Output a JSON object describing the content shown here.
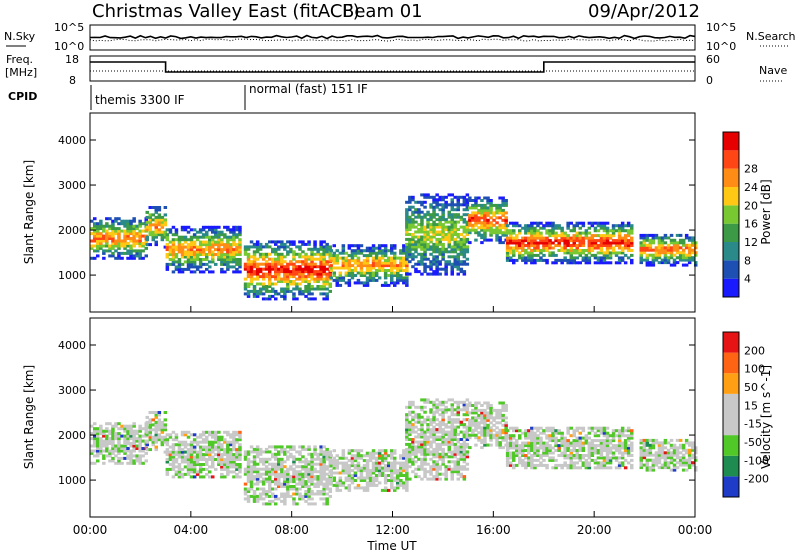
{
  "header": {
    "title": "Christmas Valley East (fitACF)",
    "beam": "Beam 01",
    "date": "09/Apr/2012"
  },
  "strips": {
    "noise_label": "N.Sky",
    "noise_left_ticks": [
      "10^5",
      "10^0"
    ],
    "noise_right_ticks": [
      "10^5",
      "10^0"
    ],
    "noise_right_label": "N.Search",
    "freq_label_1": "Freq.",
    "freq_label_2": "[MHz]",
    "freq_left_ticks": [
      "18",
      "8"
    ],
    "freq_right_ticks": [
      "60",
      "0"
    ],
    "nave_label": "Nave",
    "cpid_label": "CPID",
    "cpid_segments": [
      "themis 3300 IF",
      "normal (fast) 151 IF"
    ]
  },
  "chart_data": [
    {
      "type": "heatmap",
      "name": "Power",
      "xlabel": "",
      "ylabel": "Slant Range [km]",
      "x_range_hours": [
        0,
        24
      ],
      "ylim": [
        180,
        4600
      ],
      "y_ticks": [
        "1000",
        "2000",
        "3000",
        "4000"
      ],
      "colorbar": {
        "label": "Power [dB]",
        "ticks": [
          "4",
          "8",
          "12",
          "16",
          "20",
          "24",
          "28"
        ],
        "colors": [
          "#1a1aff",
          "#1e50b4",
          "#2a8a8a",
          "#3c9a46",
          "#78c832",
          "#ffc814",
          "#ff8c14",
          "#ff4614",
          "#e60000"
        ]
      },
      "echo_bands": [
        {
          "from_h": 0.0,
          "to_h": 2.2,
          "center_km": 1800,
          "width_km": 450,
          "peak_db": 24
        },
        {
          "from_h": 2.2,
          "to_h": 3.0,
          "center_km": 2050,
          "width_km": 450,
          "peak_db": 22
        },
        {
          "from_h": 3.0,
          "to_h": 5.9,
          "center_km": 1550,
          "width_km": 500,
          "peak_db": 22
        },
        {
          "from_h": 6.1,
          "to_h": 9.5,
          "center_km": 1100,
          "width_km": 650,
          "peak_db": 28
        },
        {
          "from_h": 9.5,
          "to_h": 12.5,
          "center_km": 1200,
          "width_km": 450,
          "peak_db": 22
        },
        {
          "from_h": 12.5,
          "to_h": 15.0,
          "center_km": 1900,
          "width_km": 900,
          "peak_db": 16
        },
        {
          "from_h": 15.0,
          "to_h": 16.5,
          "center_km": 2200,
          "width_km": 500,
          "peak_db": 26
        },
        {
          "from_h": 16.5,
          "to_h": 21.5,
          "center_km": 1700,
          "width_km": 450,
          "peak_db": 28
        },
        {
          "from_h": 21.8,
          "to_h": 24.0,
          "center_km": 1550,
          "width_km": 350,
          "peak_db": 24
        }
      ]
    },
    {
      "type": "heatmap",
      "name": "Velocity",
      "xlabel": "Time UT",
      "ylabel": "Slant Range [km]",
      "x_range_hours": [
        0,
        24
      ],
      "x_ticks": [
        "00:00",
        "04:00",
        "08:00",
        "12:00",
        "16:00",
        "20:00",
        "00:00"
      ],
      "ylim": [
        180,
        4600
      ],
      "y_ticks": [
        "1000",
        "2000",
        "3000",
        "4000"
      ],
      "colorbar": {
        "label": "Velocity [m s^-1]",
        "ticks": [
          "200",
          "100",
          "50",
          "15",
          "-15",
          "-50",
          "-100",
          "-200"
        ],
        "colors": [
          "#1e3cc8",
          "#1e8c50",
          "#50c828",
          "#c8c8c8",
          "#c8c8c8",
          "#ffa014",
          "#ff6414",
          "#e61414"
        ]
      },
      "ground_scatter_color": "#c8c8c8"
    }
  ]
}
